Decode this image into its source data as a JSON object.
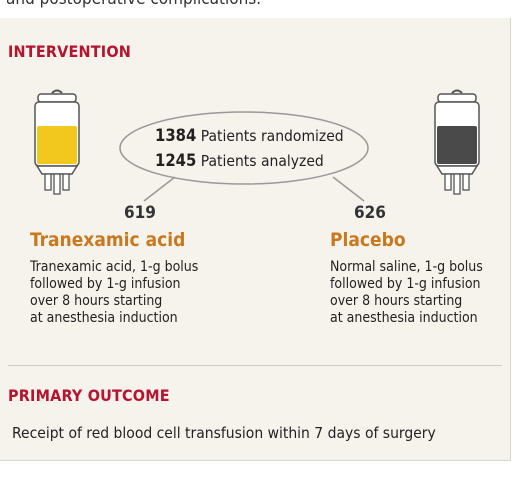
{
  "top_cut_text": "and postoperative complications.",
  "intervention": {
    "heading": "INTERVENTION",
    "randomized_count": "1384",
    "randomized_label": "Patients randomized",
    "analyzed_count": "1245",
    "analyzed_label": "Patients analyzed"
  },
  "arms": [
    {
      "count": "619",
      "name": "Tranexamic acid",
      "desc": [
        "Tranexamic acid, 1-g bolus",
        "followed by 1-g infusion",
        "over 8 hours starting",
        "at anesthesia induction"
      ]
    },
    {
      "count": "626",
      "name": "Placebo",
      "desc": [
        "Normal saline, 1-g bolus",
        "followed by 1-g infusion",
        "over 8 hours starting",
        "at anesthesia induction"
      ]
    }
  ],
  "primary_outcome": {
    "heading": "PRIMARY OUTCOME",
    "text": "Receipt of red blood cell transfusion within 7 days of surgery"
  },
  "colors": {
    "heading_red": "#b5132e",
    "arm_gold": "#c8791e",
    "txa_fluid": "#f2c81e",
    "placebo_fluid": "#4a4a4a",
    "panel_bg": "#f5f3ec"
  }
}
